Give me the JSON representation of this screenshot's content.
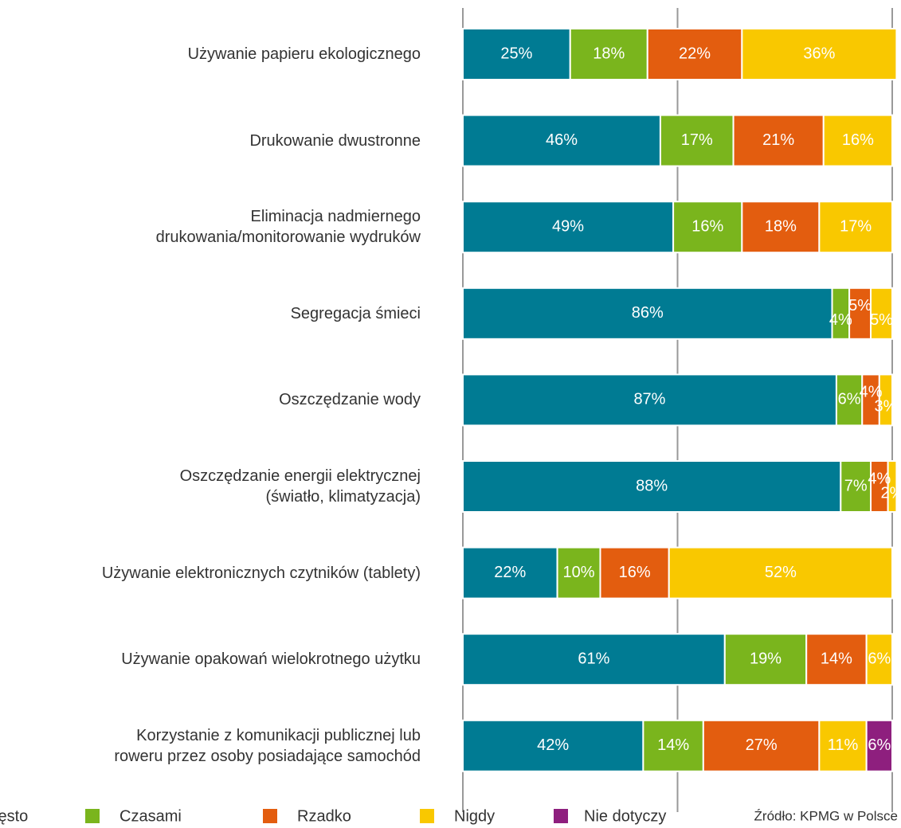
{
  "chart_data": {
    "type": "bar",
    "orientation": "horizontal",
    "stacked": true,
    "categories": [
      "Używanie papieru ekologicznego",
      "Drukowanie dwustronne",
      "Eliminacja nadmiernego\ndrukowania/monitorowanie wydruków",
      "Segregacja śmieci",
      "Oszczędzanie wody",
      "Oszczędzanie energii elektrycznej\n(światło, klimatyzacja)",
      "Używanie elektronicznych czytników (tablety)",
      "Używanie opakowań wielokrotnego użytku",
      "Korzystanie z komunikacji publicznej lub\nroweru przez osoby posiadające samochód"
    ],
    "series": [
      {
        "name": "Często",
        "color": "#007b93",
        "values": [
          25,
          46,
          49,
          86,
          87,
          88,
          22,
          61,
          42
        ],
        "value_labels": [
          "25%",
          "46%",
          "49%",
          "86%",
          "87%",
          "88%",
          "22%",
          "61%",
          "42%"
        ]
      },
      {
        "name": "Czasami",
        "color": "#7ab51d",
        "values": [
          18,
          17,
          16,
          4,
          6,
          7,
          10,
          19,
          14
        ],
        "value_labels": [
          "18%",
          "17%",
          "16%",
          "4%",
          "6%",
          "7%",
          "10%",
          "19%",
          "14%"
        ]
      },
      {
        "name": "Rzadko",
        "color": "#e35d0f",
        "values": [
          22,
          21,
          18,
          5,
          4,
          4,
          16,
          14,
          27
        ],
        "value_labels": [
          "22%",
          "21%",
          "18%",
          "5%",
          "4%",
          "4%",
          "16%",
          "14%",
          "27%"
        ]
      },
      {
        "name": "Nigdy",
        "color": "#f9c800",
        "values": [
          36,
          16,
          17,
          5,
          3,
          2,
          52,
          6,
          11
        ],
        "value_labels": [
          "36%",
          "16%",
          "17%",
          "5%",
          "3%",
          "2%",
          "52%",
          "6%",
          "11%"
        ]
      },
      {
        "name": "Nie dotyczy",
        "color": "#8e1f7e",
        "values": [
          null,
          null,
          null,
          null,
          null,
          null,
          null,
          null,
          6
        ],
        "value_labels": [
          null,
          null,
          null,
          null,
          null,
          null,
          null,
          null,
          "6%"
        ]
      }
    ],
    "xlim": [
      0,
      100
    ],
    "xticks": [
      0,
      50,
      100
    ],
    "grid": true,
    "legend": "bottom",
    "source": "Źródło: KPMG w Polsce"
  }
}
